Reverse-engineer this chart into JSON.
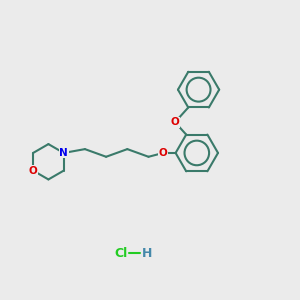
{
  "bg_color": "#ebebeb",
  "bond_color": "#3a7a6a",
  "N_color": "#0000ee",
  "O_color": "#dd0000",
  "HCl_color": "#22cc22",
  "H_color": "#4488aa",
  "line_width": 1.5,
  "figsize": [
    3.0,
    3.0
  ],
  "dpi": 100,
  "xlim": [
    0,
    10
  ],
  "ylim": [
    0,
    10
  ]
}
